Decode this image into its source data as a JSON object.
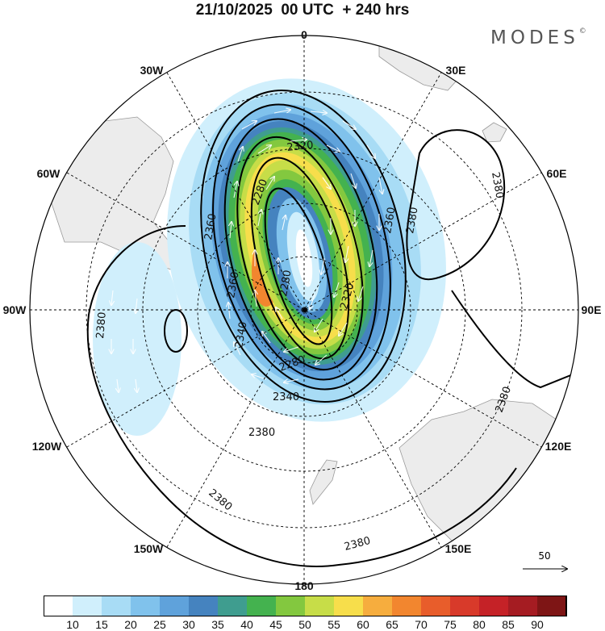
{
  "title": "21/10/2025  00 UTC  + 240 hrs",
  "logo": {
    "text": "MODES",
    "mark": "©"
  },
  "map": {
    "projection": "south-polar-stereographic",
    "longitude_labels": [
      "0",
      "30E",
      "60E",
      "90E",
      "120E",
      "150E",
      "180",
      "150W",
      "120W",
      "90W",
      "60W",
      "30W"
    ],
    "contour_labels": [
      "2320",
      "2280",
      "2360",
      "2360",
      "2380",
      "2380",
      "2360",
      "2280",
      "2260",
      "2320",
      "2340",
      "2280",
      "2340",
      "2360",
      "2380",
      "2380",
      "2380",
      "2380",
      "2380"
    ],
    "colors": {
      "land": "#ececec",
      "graticule": "#000000",
      "contour": "#000000",
      "vector": "#ffffff"
    },
    "wind_reference": {
      "value": "50"
    }
  },
  "colorbar": {
    "levels": [
      "10",
      "15",
      "20",
      "25",
      "30",
      "35",
      "40",
      "45",
      "50",
      "55",
      "60",
      "65",
      "70",
      "75",
      "80",
      "85",
      "90"
    ],
    "colors": [
      "#ffffff",
      "#d0effc",
      "#a8dcf5",
      "#80c2ec",
      "#5fa2db",
      "#4583bf",
      "#3f9d8f",
      "#44b24f",
      "#83c83f",
      "#c7dd48",
      "#f7de4b",
      "#f6ad3e",
      "#f2862f",
      "#e85d2b",
      "#d83a2a",
      "#c52227",
      "#a51c22",
      "#7e1515"
    ]
  }
}
